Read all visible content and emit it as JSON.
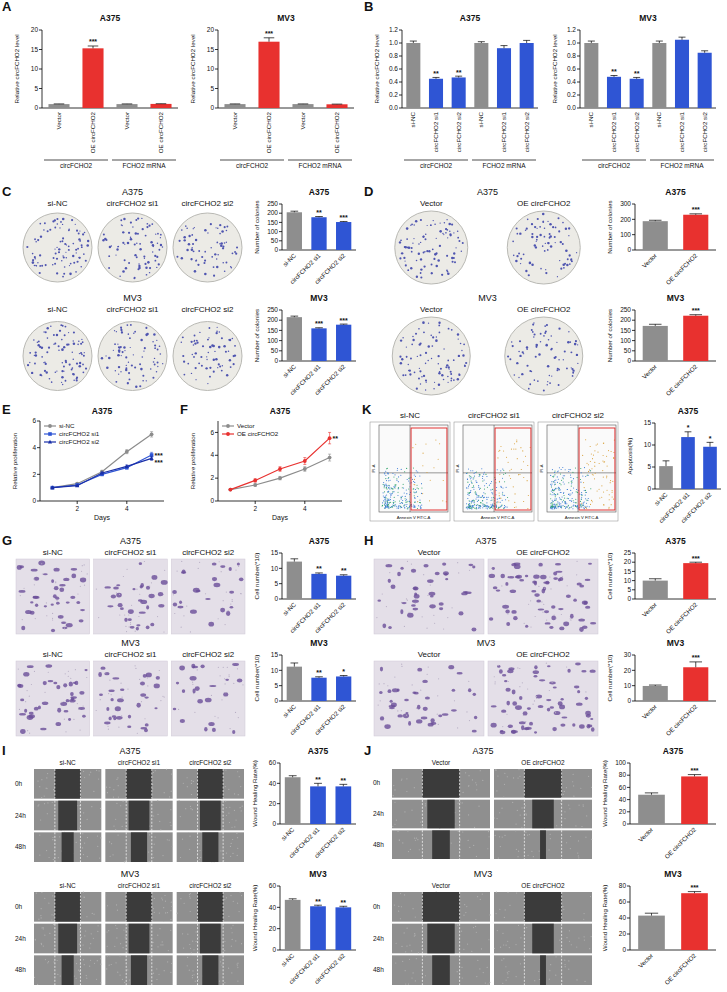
{
  "chart_data": [
    {
      "type": "bar",
      "title": "A375",
      "ylabel": "Relative circFCHO2 level",
      "categories": [
        "Vector",
        "OE circFCHO2",
        "Vector",
        "OE circFCHO2"
      ],
      "values": [
        1,
        15.3,
        1,
        1.05
      ],
      "errors": [
        0.05,
        0.6,
        0.05,
        0.05
      ],
      "colors": [
        "#8e8e8e",
        "#e8312f",
        "#8e8e8e",
        "#e8312f"
      ],
      "significance": [
        null,
        "***",
        null,
        null
      ],
      "groups": [
        {
          "label": "circFCHO2",
          "count": 2
        },
        {
          "label": "FCHO2 mRNA",
          "count": 2
        }
      ],
      "ylim": [
        0,
        20
      ],
      "yticks": [
        0,
        5,
        10,
        15,
        20
      ]
    },
    {
      "type": "bar",
      "title": "MV3",
      "ylabel": "Relative circFCHO2 level",
      "categories": [
        "Vector",
        "OE circFCHO2",
        "Vector",
        "OE circFCHO2"
      ],
      "values": [
        1,
        17,
        1,
        0.95
      ],
      "errors": [
        0.05,
        1.0,
        0.05,
        0.05
      ],
      "colors": [
        "#8e8e8e",
        "#e8312f",
        "#8e8e8e",
        "#e8312f"
      ],
      "significance": [
        null,
        "***",
        null,
        null
      ],
      "groups": [
        {
          "label": "circFCHO2",
          "count": 2
        },
        {
          "label": "FCHO2 mRNA",
          "count": 2
        }
      ],
      "ylim": [
        0,
        20
      ],
      "yticks": [
        0,
        5,
        10,
        15,
        20
      ]
    },
    {
      "type": "bar",
      "title": "A375",
      "ylabel": "Relative circFCHO2 level",
      "categories": [
        "si-NC",
        "circFCHO2 si1",
        "circFCHO2 si2",
        "si-NC",
        "circFCHO2 si1",
        "circFCHO2 si2"
      ],
      "values": [
        1,
        0.45,
        0.47,
        1,
        0.92,
        1.0
      ],
      "errors": [
        0.03,
        0.02,
        0.02,
        0.02,
        0.04,
        0.04
      ],
      "colors": [
        "#8e8e8e",
        "#2f55d4",
        "#2f55d4",
        "#8e8e8e",
        "#2f55d4",
        "#2f55d4"
      ],
      "significance": [
        null,
        "**",
        "**",
        null,
        null,
        null
      ],
      "groups": [
        {
          "label": "circFCHO2",
          "count": 3
        },
        {
          "label": "FCHO2 mRNA",
          "count": 3
        }
      ],
      "ylim": [
        0,
        1.2
      ],
      "yticks": [
        {
          "value": 0,
          "label": "0.0"
        },
        0.2,
        0.4,
        0.6,
        0.8,
        {
          "value": 1,
          "label": "1.0"
        },
        1.2
      ]
    },
    {
      "type": "bar",
      "title": "MV3",
      "ylabel": "Relative circFCHO2 level",
      "categories": [
        "si-NC",
        "circFCHO2 si1",
        "circFCHO2 si2",
        "si-NC",
        "circFCHO2 si1",
        "circFCHO2 si2"
      ],
      "values": [
        1,
        0.48,
        0.45,
        1,
        1.05,
        0.85
      ],
      "errors": [
        0.03,
        0.02,
        0.02,
        0.03,
        0.04,
        0.03
      ],
      "colors": [
        "#8e8e8e",
        "#2f55d4",
        "#2f55d4",
        "#8e8e8e",
        "#2f55d4",
        "#2f55d4"
      ],
      "significance": [
        null,
        "**",
        "**",
        null,
        null,
        null
      ],
      "groups": [
        {
          "label": "circFCHO2",
          "count": 3
        },
        {
          "label": "FCHO2 mRNA",
          "count": 3
        }
      ],
      "ylim": [
        0,
        1.2
      ],
      "yticks": [
        {
          "value": 0,
          "label": "0.0"
        },
        0.2,
        0.4,
        0.6,
        0.8,
        {
          "value": 1,
          "label": "1.0"
        },
        1.2
      ]
    },
    {
      "type": "bar",
      "title": "A375",
      "ylabel": "Number of colonies",
      "categories": [
        "si-NC",
        "circFCHO2 si1",
        "circFCHO2 si2"
      ],
      "values": [
        205,
        178,
        152
      ],
      "errors": [
        6,
        4,
        3
      ],
      "colors": [
        "#8e8e8e",
        "#2f55d4",
        "#2f55d4"
      ],
      "significance": [
        null,
        "**",
        "***"
      ],
      "ylim": [
        0,
        250
      ],
      "yticks": [
        0,
        50,
        100,
        150,
        200,
        250
      ]
    },
    {
      "type": "bar",
      "title": "MV3",
      "ylabel": "Number of colonies",
      "categories": [
        "si-NC",
        "circFCHO2 si1",
        "circFCHO2 si2"
      ],
      "values": [
        215,
        160,
        178
      ],
      "errors": [
        5,
        3,
        3
      ],
      "colors": [
        "#8e8e8e",
        "#2f55d4",
        "#2f55d4"
      ],
      "significance": [
        null,
        "***",
        "***"
      ],
      "ylim": [
        0,
        250
      ],
      "yticks": [
        0,
        50,
        100,
        150,
        200,
        250
      ]
    },
    {
      "type": "bar",
      "title": "A375",
      "ylabel": "Number of colonies",
      "categories": [
        "Vector",
        "OE circFCHO2"
      ],
      "values": [
        188,
        230
      ],
      "errors": [
        6,
        6
      ],
      "colors": [
        "#8e8e8e",
        "#e8312f"
      ],
      "significance": [
        null,
        "***"
      ],
      "ylim": [
        0,
        300
      ],
      "yticks": [
        0,
        100,
        200,
        300
      ]
    },
    {
      "type": "bar",
      "title": "MV3",
      "ylabel": "Number of colonies",
      "categories": [
        "Vector",
        "OE circFCHO2"
      ],
      "values": [
        172,
        222
      ],
      "errors": [
        8,
        5
      ],
      "colors": [
        "#8e8e8e",
        "#e8312f"
      ],
      "significance": [
        null,
        "***"
      ],
      "ylim": [
        0,
        250
      ],
      "yticks": [
        0,
        50,
        100,
        150,
        200,
        250
      ]
    },
    {
      "type": "line",
      "title": "A375",
      "xlabel": "Days",
      "ylabel": "Relative proliferation",
      "x": [
        1,
        2,
        3,
        4,
        5
      ],
      "xlim": [
        0.5,
        5.5
      ],
      "xticks": [
        2,
        4
      ],
      "ylim": [
        0,
        6
      ],
      "yticks": [
        0,
        2,
        4,
        6
      ],
      "legend": "upper left",
      "series": [
        {
          "name": "si-NC",
          "color": "#8c8c8c",
          "marker": "circle",
          "values": [
            1,
            1.3,
            2.2,
            3.7,
            5.0
          ],
          "errors": [
            0.02,
            0.08,
            0.1,
            0.15,
            0.2
          ]
        },
        {
          "name": "circFCHO2 si1",
          "color": "#2f55d4",
          "marker": "square",
          "values": [
            1,
            1.2,
            2.0,
            2.5,
            3.45
          ],
          "errors": [
            0.02,
            0.05,
            0.1,
            0.1,
            0.2
          ],
          "significance": "***"
        },
        {
          "name": "circFCHO2 si2",
          "color": "#1a2fa8",
          "marker": "triangle",
          "values": [
            1,
            1.15,
            2.1,
            2.6,
            3.2
          ],
          "errors": [
            0.02,
            0.05,
            0.08,
            0.1,
            0.15
          ],
          "significance": "***"
        }
      ]
    },
    {
      "type": "line",
      "title": "A375",
      "xlabel": "Days",
      "ylabel": "Relative proliferation",
      "x": [
        1,
        2,
        3,
        4,
        5
      ],
      "xlim": [
        0.5,
        5.5
      ],
      "xticks": [
        2,
        4
      ],
      "ylim": [
        0,
        7
      ],
      "yticks": [
        0,
        2,
        4,
        6
      ],
      "legend": "upper left",
      "series": [
        {
          "name": "Vector",
          "color": "#8c8c8c",
          "marker": "circle",
          "values": [
            1,
            1.4,
            2.0,
            2.8,
            3.8
          ],
          "errors": [
            0.02,
            0.1,
            0.15,
            0.2,
            0.3
          ]
        },
        {
          "name": "OE circFCHO2",
          "color": "#e8312f",
          "marker": "circle",
          "values": [
            1,
            1.8,
            2.8,
            3.5,
            5.5
          ],
          "errors": [
            0.02,
            0.15,
            0.2,
            0.3,
            0.5
          ],
          "significance": "**"
        }
      ]
    },
    {
      "type": "bar",
      "title": "A375",
      "ylabel": "Apoptosis(%)",
      "categories": [
        "si-NC",
        "circFCHO2 si1",
        "circFCHO2 si2"
      ],
      "values": [
        5.2,
        11.8,
        9.6
      ],
      "errors": [
        1.2,
        1.2,
        1.0
      ],
      "colors": [
        "#8e8e8e",
        "#2f55d4",
        "#2f55d4"
      ],
      "significance": [
        null,
        "*",
        "*"
      ],
      "ylim": [
        0,
        15
      ],
      "yticks": [
        0,
        5,
        10,
        15
      ]
    },
    {
      "type": "bar",
      "title": "A375",
      "ylabel": "Cell number(*10)",
      "categories": [
        "si-NC",
        "circFCHO2 si1",
        "circFCHO2 si2"
      ],
      "values": [
        12.2,
        8.2,
        7.6
      ],
      "errors": [
        0.9,
        0.3,
        0.3
      ],
      "colors": [
        "#8e8e8e",
        "#2f55d4",
        "#2f55d4"
      ],
      "significance": [
        null,
        "**",
        "**"
      ],
      "ylim": [
        0,
        15
      ],
      "yticks": [
        0,
        5,
        10,
        15
      ]
    },
    {
      "type": "bar",
      "title": "MV3",
      "ylabel": "Cell number(*10)",
      "categories": [
        "si-NC",
        "circFCHO2 si1",
        "circFCHO2 si2"
      ],
      "values": [
        11.2,
        7.6,
        8.0
      ],
      "errors": [
        1.2,
        0.3,
        0.3
      ],
      "colors": [
        "#8e8e8e",
        "#2f55d4",
        "#2f55d4"
      ],
      "significance": [
        null,
        "**",
        "*"
      ],
      "ylim": [
        0,
        15
      ],
      "yticks": [
        0,
        5,
        10,
        15
      ]
    },
    {
      "type": "bar",
      "title": "A375",
      "ylabel": "Cell number(*10)",
      "categories": [
        "Vector",
        "OE circFCHO2"
      ],
      "values": [
        10,
        19.5
      ],
      "errors": [
        1,
        0.5
      ],
      "colors": [
        "#8e8e8e",
        "#e8312f"
      ],
      "significance": [
        null,
        "***"
      ],
      "ylim": [
        0,
        25
      ],
      "yticks": [
        0,
        5,
        10,
        15,
        20,
        25
      ]
    },
    {
      "type": "bar",
      "title": "MV3",
      "ylabel": "Cell number(*10)",
      "categories": [
        "Vector",
        "OE circFCHO2"
      ],
      "values": [
        9.8,
        22
      ],
      "errors": [
        0.6,
        3.5
      ],
      "colors": [
        "#8e8e8e",
        "#e8312f"
      ],
      "significance": [
        null,
        "***"
      ],
      "ylim": [
        0,
        30
      ],
      "yticks": [
        0,
        10,
        20,
        30
      ]
    },
    {
      "type": "bar",
      "title": "A375",
      "ylabel": "Wound Healing Rate(%)",
      "categories": [
        "si-NC",
        "circFCHO2 si1",
        "circFCHO2 si2"
      ],
      "values": [
        46,
        37,
        37
      ],
      "errors": [
        1.5,
        3,
        2
      ],
      "colors": [
        "#8e8e8e",
        "#2f55d4",
        "#2f55d4"
      ],
      "significance": [
        null,
        "**",
        "**"
      ],
      "ylim": [
        0,
        60
      ],
      "yticks": [
        0,
        20,
        40,
        60
      ]
    },
    {
      "type": "bar",
      "title": "MV3",
      "ylabel": "Wound Healing Rate(%)",
      "categories": [
        "si-NC",
        "circFCHO2 si1",
        "circFCHO2 si2"
      ],
      "values": [
        47,
        41,
        40
      ],
      "errors": [
        1,
        1,
        1
      ],
      "colors": [
        "#8e8e8e",
        "#2f55d4",
        "#2f55d4"
      ],
      "significance": [
        null,
        "**",
        "**"
      ],
      "ylim": [
        0,
        60
      ],
      "yticks": [
        0,
        20,
        40,
        60
      ]
    },
    {
      "type": "bar",
      "title": "A375",
      "ylabel": "Wound Healing Rate(%)",
      "categories": [
        "Vector",
        "OE circFCHO2"
      ],
      "values": [
        48,
        78
      ],
      "errors": [
        3,
        3
      ],
      "colors": [
        "#8e8e8e",
        "#e8312f"
      ],
      "significance": [
        null,
        "***"
      ],
      "ylim": [
        0,
        100
      ],
      "yticks": [
        0,
        20,
        40,
        60,
        80,
        100
      ]
    },
    {
      "type": "bar",
      "title": "MV3",
      "ylabel": "Wound Healing Rate(%)",
      "categories": [
        "Vector",
        "OE circFCHO2"
      ],
      "values": [
        43,
        71
      ],
      "errors": [
        3,
        2
      ],
      "colors": [
        "#8e8e8e",
        "#e8312f"
      ],
      "significance": [
        null,
        "***"
      ],
      "ylim": [
        0,
        80
      ],
      "yticks": [
        0,
        20,
        40,
        60,
        80
      ]
    }
  ],
  "figure": {
    "panel_letters": [
      "A",
      "B",
      "C",
      "D",
      "E",
      "F",
      "G",
      "H",
      "I",
      "J",
      "K"
    ],
    "image_panels": [
      {
        "kind": "colony",
        "title": "A375",
        "columns": [
          "si-NC",
          "circFCHO2 si1",
          "circFCHO2 si2"
        ]
      },
      {
        "kind": "colony",
        "title": "MV3",
        "columns": [
          "si-NC",
          "circFCHO2 si1",
          "circFCHO2 si2"
        ]
      },
      {
        "kind": "colony",
        "title": "A375",
        "columns": [
          "Vector",
          "OE circFCHO2"
        ]
      },
      {
        "kind": "colony",
        "title": "MV3",
        "columns": [
          "Vector",
          "OE circFCHO2"
        ]
      },
      {
        "kind": "flow",
        "columns": [
          "si-NC",
          "circFCHO2 si1",
          "circFCHO2 si2"
        ],
        "x_label": "Annexin V FITC-A",
        "y_label": "PI-A"
      },
      {
        "kind": "transwell",
        "title": "A375",
        "columns": [
          "si-NC",
          "circFCHO2 si1",
          "circFCHO2 si2"
        ]
      },
      {
        "kind": "transwell",
        "title": "MV3",
        "columns": [
          "si-NC",
          "circFCHO2 si1",
          "circFCHO2 si2"
        ]
      },
      {
        "kind": "transwell",
        "title": "A375",
        "columns": [
          "Vector",
          "OE circFCHO2"
        ]
      },
      {
        "kind": "transwell",
        "title": "MV3",
        "columns": [
          "Vector",
          "OE circFCHO2"
        ]
      },
      {
        "kind": "wound",
        "title": "A375",
        "columns": [
          "si-NC",
          "circFCHO2 si1",
          "circFCHO2 si2"
        ],
        "rows": [
          "0h",
          "24h",
          "48h"
        ]
      },
      {
        "kind": "wound",
        "title": "MV3",
        "columns": [
          "si-NC",
          "circFCHO2 si1",
          "circFCHO2 si2"
        ],
        "rows": [
          "0h",
          "24h",
          "48h"
        ]
      },
      {
        "kind": "wound",
        "title": "A375",
        "columns": [
          "Vector",
          "OE circFCHO2"
        ],
        "rows": [
          "0h",
          "24h",
          "48h"
        ]
      },
      {
        "kind": "wound",
        "title": "MV3",
        "columns": [
          "Vector",
          "OE circFCHO2"
        ],
        "rows": [
          "0h",
          "24h",
          "48h"
        ]
      }
    ]
  }
}
